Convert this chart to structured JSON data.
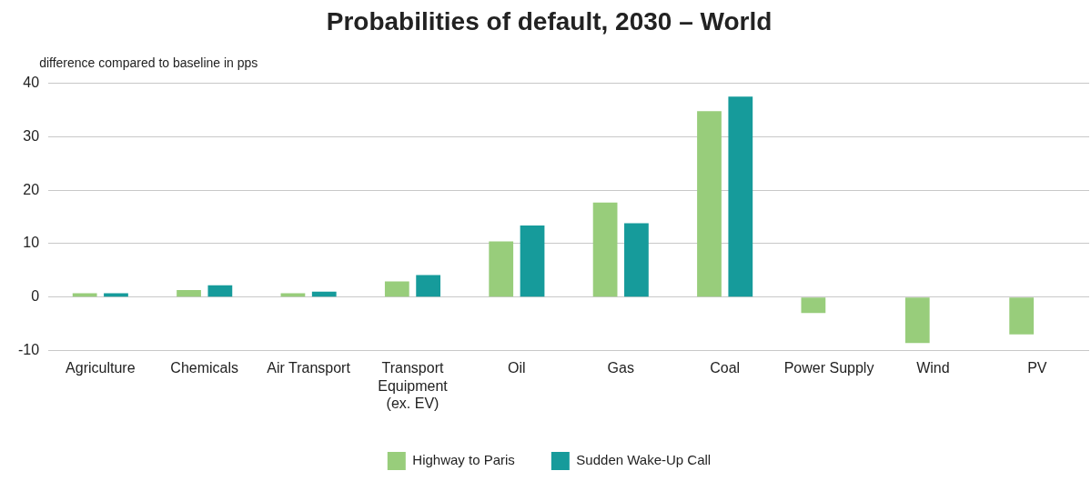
{
  "chart_data": {
    "type": "bar",
    "title": "Probabilities of default, 2030 – World",
    "ylabel": "difference compared to baseline in pps",
    "categories": [
      "Agriculture",
      "Chemicals",
      "Air Transport",
      "Transport Equipment (ex. EV)",
      "Oil",
      "Gas",
      "Coal",
      "Power Supply",
      "Wind",
      "PV"
    ],
    "series": [
      {
        "name": "Highway to Paris",
        "color": "#98cd7b",
        "values": [
          0.7,
          1.3,
          0.7,
          2.9,
          10.4,
          17.7,
          34.8,
          -3.0,
          -8.6,
          -7.0
        ]
      },
      {
        "name": "Sudden Wake-Up Call",
        "color": "#169b9b",
        "values": [
          0.7,
          2.2,
          1.0,
          4.1,
          13.4,
          13.8,
          37.5,
          null,
          null,
          null
        ]
      }
    ],
    "ylim": [
      -10,
      40
    ],
    "yticks": [
      -10,
      0,
      10,
      20,
      30,
      40
    ],
    "grid": "y",
    "legend": "bottom"
  }
}
